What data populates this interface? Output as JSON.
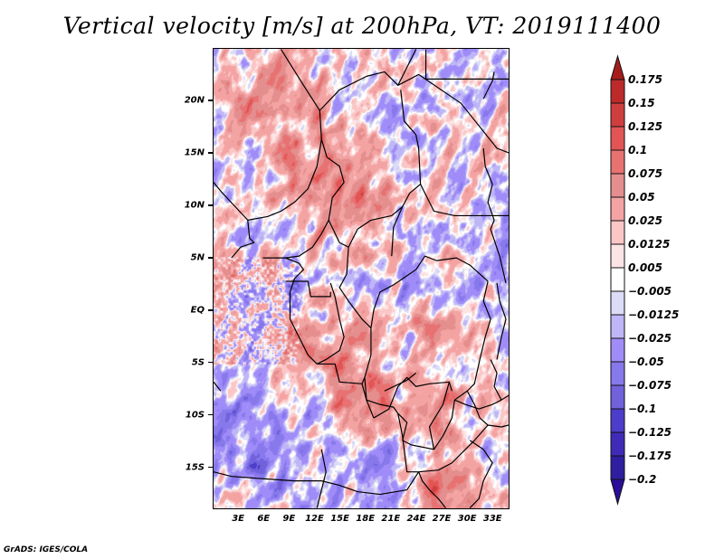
{
  "title": "Vertical velocity [m/s] at 200hPa, VT: 2019111400",
  "credit": "GrADS: IGES/COLA",
  "map": {
    "variable": "Vertical velocity",
    "units": "m/s",
    "level": "200hPa",
    "valid_time": "2019111400",
    "lon_range": [
      0,
      35
    ],
    "lat_range": [
      -19,
      25
    ],
    "y_ticks": [
      {
        "label": "20N",
        "lat": 20
      },
      {
        "label": "15N",
        "lat": 15
      },
      {
        "label": "10N",
        "lat": 10
      },
      {
        "label": "5N",
        "lat": 5
      },
      {
        "label": "EQ",
        "lat": 0
      },
      {
        "label": "5S",
        "lat": -5
      },
      {
        "label": "10S",
        "lat": -10
      },
      {
        "label": "15S",
        "lat": -15
      }
    ],
    "x_ticks": [
      {
        "label": "3E",
        "lon": 3
      },
      {
        "label": "6E",
        "lon": 6
      },
      {
        "label": "9E",
        "lon": 9
      },
      {
        "label": "12E",
        "lon": 12
      },
      {
        "label": "15E",
        "lon": 15
      },
      {
        "label": "18E",
        "lon": 18
      },
      {
        "label": "21E",
        "lon": 21
      },
      {
        "label": "24E",
        "lon": 24
      },
      {
        "label": "27E",
        "lon": 27
      },
      {
        "label": "30E",
        "lon": 30
      },
      {
        "label": "33E",
        "lon": 33
      }
    ]
  },
  "colorbar": {
    "labels": [
      "0.175",
      "0.15",
      "0.125",
      "0.1",
      "0.075",
      "0.05",
      "0.025",
      "0.0125",
      "0.005",
      "-0.005",
      "-0.0125",
      "-0.025",
      "-0.05",
      "-0.075",
      "-0.1",
      "-0.125",
      "-0.175",
      "-0.2"
    ],
    "levels": [
      0.175,
      0.15,
      0.125,
      0.1,
      0.075,
      0.05,
      0.025,
      0.0125,
      0.005,
      -0.005,
      -0.0125,
      -0.025,
      -0.05,
      -0.075,
      -0.1,
      -0.125,
      -0.175,
      -0.2
    ],
    "colors": [
      "#a61c1c",
      "#bc2a2a",
      "#cf3e3e",
      "#e25555",
      "#e87272",
      "#e48e8e",
      "#f4a3a3",
      "#fac6c6",
      "#fde4e4",
      "#ffffff",
      "#dcdcf6",
      "#bfb6f7",
      "#a08cf8",
      "#8778ec",
      "#7161db",
      "#4c3dcb",
      "#3f2bb8",
      "#2f1fa0",
      "#2a0e99"
    ]
  }
}
